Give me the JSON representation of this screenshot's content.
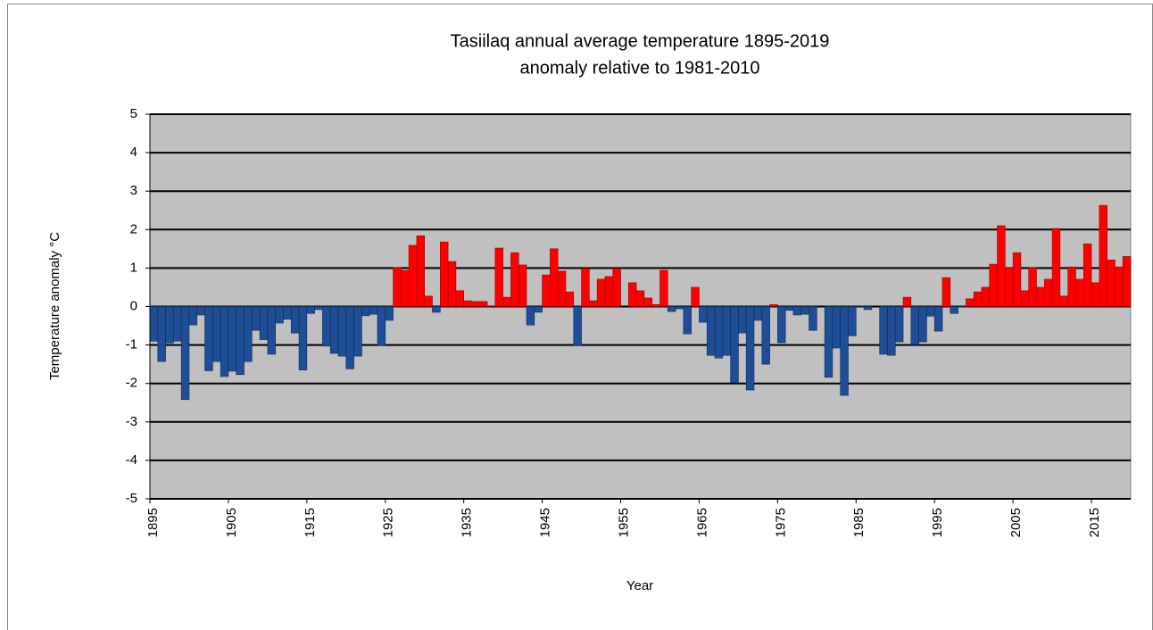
{
  "chart_data": {
    "type": "bar",
    "title": "Tasiilaq annual average temperature 1895-2019",
    "subtitle": "anomaly relative to 1981-2010",
    "x_label": "Year",
    "y_label": "Temperature anomaly °C",
    "x": [
      1895,
      1896,
      1897,
      1898,
      1899,
      1900,
      1901,
      1902,
      1903,
      1904,
      1905,
      1906,
      1907,
      1908,
      1909,
      1910,
      1911,
      1912,
      1913,
      1914,
      1915,
      1916,
      1917,
      1918,
      1919,
      1920,
      1921,
      1922,
      1923,
      1924,
      1925,
      1926,
      1927,
      1928,
      1929,
      1930,
      1931,
      1932,
      1933,
      1934,
      1935,
      1936,
      1937,
      1938,
      1939,
      1940,
      1941,
      1942,
      1943,
      1944,
      1945,
      1946,
      1947,
      1948,
      1949,
      1950,
      1951,
      1952,
      1953,
      1954,
      1955,
      1956,
      1957,
      1958,
      1959,
      1960,
      1961,
      1962,
      1963,
      1964,
      1965,
      1966,
      1967,
      1968,
      1969,
      1970,
      1971,
      1972,
      1973,
      1974,
      1975,
      1976,
      1977,
      1978,
      1979,
      1980,
      1981,
      1982,
      1983,
      1984,
      1985,
      1986,
      1987,
      1988,
      1989,
      1990,
      1991,
      1992,
      1993,
      1994,
      1995,
      1996,
      1997,
      1998,
      1999,
      2000,
      2001,
      2002,
      2003,
      2004,
      2005,
      2006,
      2007,
      2008,
      2009,
      2010,
      2011,
      2012,
      2013,
      2014,
      2015,
      2016,
      2017,
      2018,
      2019
    ],
    "values": [
      -0.9,
      -1.43,
      -0.95,
      -0.9,
      -2.42,
      -0.48,
      -0.22,
      -1.67,
      -1.43,
      -1.82,
      -1.68,
      -1.77,
      -1.43,
      -0.62,
      -0.86,
      -1.24,
      -0.43,
      -0.33,
      -0.69,
      -1.65,
      -0.18,
      -0.08,
      -1.03,
      -1.22,
      -1.29,
      -1.62,
      -1.29,
      -0.24,
      -0.2,
      -1.01,
      -0.36,
      1.01,
      0.94,
      1.59,
      1.84,
      0.27,
      -0.15,
      1.68,
      1.17,
      0.41,
      0.15,
      0.13,
      0.13,
      0.01,
      1.52,
      0.24,
      1.4,
      1.08,
      -0.48,
      -0.15,
      0.82,
      1.5,
      0.92,
      0.38,
      -1.01,
      0.99,
      0.15,
      0.71,
      0.78,
      0.99,
      0,
      0.62,
      0.41,
      0.22,
      0.05,
      0.94,
      -0.13,
      -0.06,
      -0.71,
      0.5,
      -0.41,
      -1.27,
      -1.34,
      -1.27,
      -1.98,
      -0.69,
      -2.17,
      -0.36,
      -1.5,
      0.05,
      -0.94,
      -0.1,
      -0.22,
      -0.2,
      -0.62,
      0,
      -1.84,
      -1.08,
      -2.31,
      -0.76,
      -0.01,
      -0.08,
      0,
      -1.24,
      -1.27,
      -0.92,
      0.24,
      -0.99,
      -0.92,
      -0.25,
      -0.64,
      0.75,
      -0.18,
      -0.01,
      0.2,
      0.38,
      0.5,
      1.1,
      2.1,
      1.01,
      1.4,
      0.41,
      1.01,
      0.5,
      0.71,
      2.03,
      0.27,
      1.03,
      0.71,
      1.63,
      0.62,
      2.63,
      1.21,
      1.03,
      1.3
    ],
    "color_positive": "#ff0000",
    "color_negative": "#1f4e96",
    "xlim": [
      1895,
      2020
    ],
    "xticks": [
      1895,
      1905,
      1915,
      1925,
      1935,
      1945,
      1955,
      1965,
      1975,
      1985,
      1995,
      2005,
      2015
    ],
    "ylim": [
      -5,
      5
    ],
    "yticks": [
      -5,
      -4,
      -3,
      -2,
      -1,
      0,
      1,
      2,
      3,
      4,
      5
    ],
    "grid": true,
    "plot_background": "#c0c0c0"
  }
}
